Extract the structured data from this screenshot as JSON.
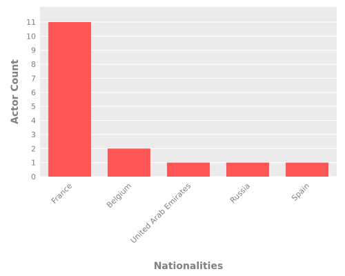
{
  "chart_data": {
    "type": "bar",
    "categories": [
      "France",
      "Belgium",
      "United Arab Emirates",
      "Russia",
      "Spain"
    ],
    "values": [
      11,
      2,
      1,
      1,
      1
    ],
    "title": "",
    "xlabel": "Nationalities",
    "ylabel": "Actor Count",
    "ylim": [
      0,
      11
    ],
    "yticks": [
      0,
      1,
      2,
      3,
      4,
      5,
      6,
      7,
      8,
      9,
      10,
      11
    ],
    "grid": true,
    "legend": "none",
    "colors": {
      "bar": "#FF5555",
      "plot_background": "#EBEBEB",
      "grid": "#FFFFFF",
      "text": "#808080"
    }
  }
}
